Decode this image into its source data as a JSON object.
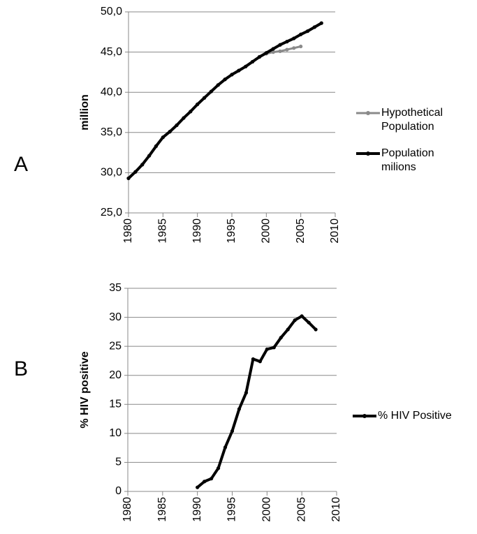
{
  "chart_data": [
    {
      "type": "line",
      "panel_label": "A",
      "ylabel": "million",
      "xlim": [
        1980,
        2010
      ],
      "xticks": [
        1980,
        1985,
        1990,
        1995,
        2000,
        2005,
        2010
      ],
      "ylim": [
        25,
        50
      ],
      "yticks": [
        {
          "value": 25,
          "label": "25,0"
        },
        {
          "value": 30,
          "label": "30,0"
        },
        {
          "value": 35,
          "label": "35,0"
        },
        {
          "value": 40,
          "label": "40,0"
        },
        {
          "value": 45,
          "label": "45,0"
        },
        {
          "value": 50,
          "label": "50,0"
        }
      ],
      "grid": true,
      "legend": "right",
      "series": [
        {
          "name": "Hypothetical Population",
          "color": "#8a8a8a",
          "x": [
            1980,
            1981,
            1982,
            1983,
            1984,
            1985,
            1986,
            1987,
            1988,
            1989,
            1990,
            1991,
            1992,
            1993,
            1994,
            1995,
            1996,
            1997,
            1998,
            1999,
            2000,
            2001,
            2002,
            2003,
            2004,
            2005
          ],
          "values": [
            29.3,
            30.1,
            31.0,
            32.1,
            33.3,
            34.4,
            35.1,
            35.9,
            36.8,
            37.6,
            38.5,
            39.3,
            40.1,
            40.9,
            41.6,
            42.2,
            42.7,
            43.2,
            43.8,
            44.4,
            44.8,
            45.0,
            45.1,
            45.3,
            45.5,
            45.7
          ]
        },
        {
          "name": "Population milions",
          "color": "#000000",
          "x": [
            1980,
            1981,
            1982,
            1983,
            1984,
            1985,
            1986,
            1987,
            1988,
            1989,
            1990,
            1991,
            1992,
            1993,
            1994,
            1995,
            1996,
            1997,
            1998,
            1999,
            2000,
            2001,
            2002,
            2003,
            2004,
            2005,
            2006,
            2007,
            2008
          ],
          "values": [
            29.3,
            30.1,
            31.0,
            32.1,
            33.3,
            34.4,
            35.1,
            35.9,
            36.8,
            37.6,
            38.5,
            39.3,
            40.1,
            40.9,
            41.6,
            42.2,
            42.7,
            43.2,
            43.8,
            44.4,
            44.9,
            45.4,
            45.9,
            46.3,
            46.7,
            47.2,
            47.6,
            48.1,
            48.6
          ]
        }
      ]
    },
    {
      "type": "line",
      "panel_label": "B",
      "ylabel": "% HIV positive",
      "xlim": [
        1980,
        2010
      ],
      "xticks": [
        1980,
        1985,
        1990,
        1995,
        2000,
        2005,
        2010
      ],
      "ylim": [
        0,
        35
      ],
      "yticks": [
        0,
        5,
        10,
        15,
        20,
        25,
        30,
        35
      ],
      "grid": true,
      "legend": "right",
      "series": [
        {
          "name": "% HIV Positive",
          "color": "#000000",
          "x": [
            1990,
            1991,
            1992,
            1993,
            1994,
            1995,
            1996,
            1997,
            1998,
            1999,
            2000,
            2001,
            2002,
            2003,
            2004,
            2005,
            2006,
            2007
          ],
          "values": [
            0.7,
            1.7,
            2.2,
            4.0,
            7.6,
            10.4,
            14.2,
            17.0,
            22.8,
            22.4,
            24.5,
            24.8,
            26.5,
            27.9,
            29.5,
            30.2,
            29.1,
            27.9
          ]
        }
      ]
    }
  ]
}
